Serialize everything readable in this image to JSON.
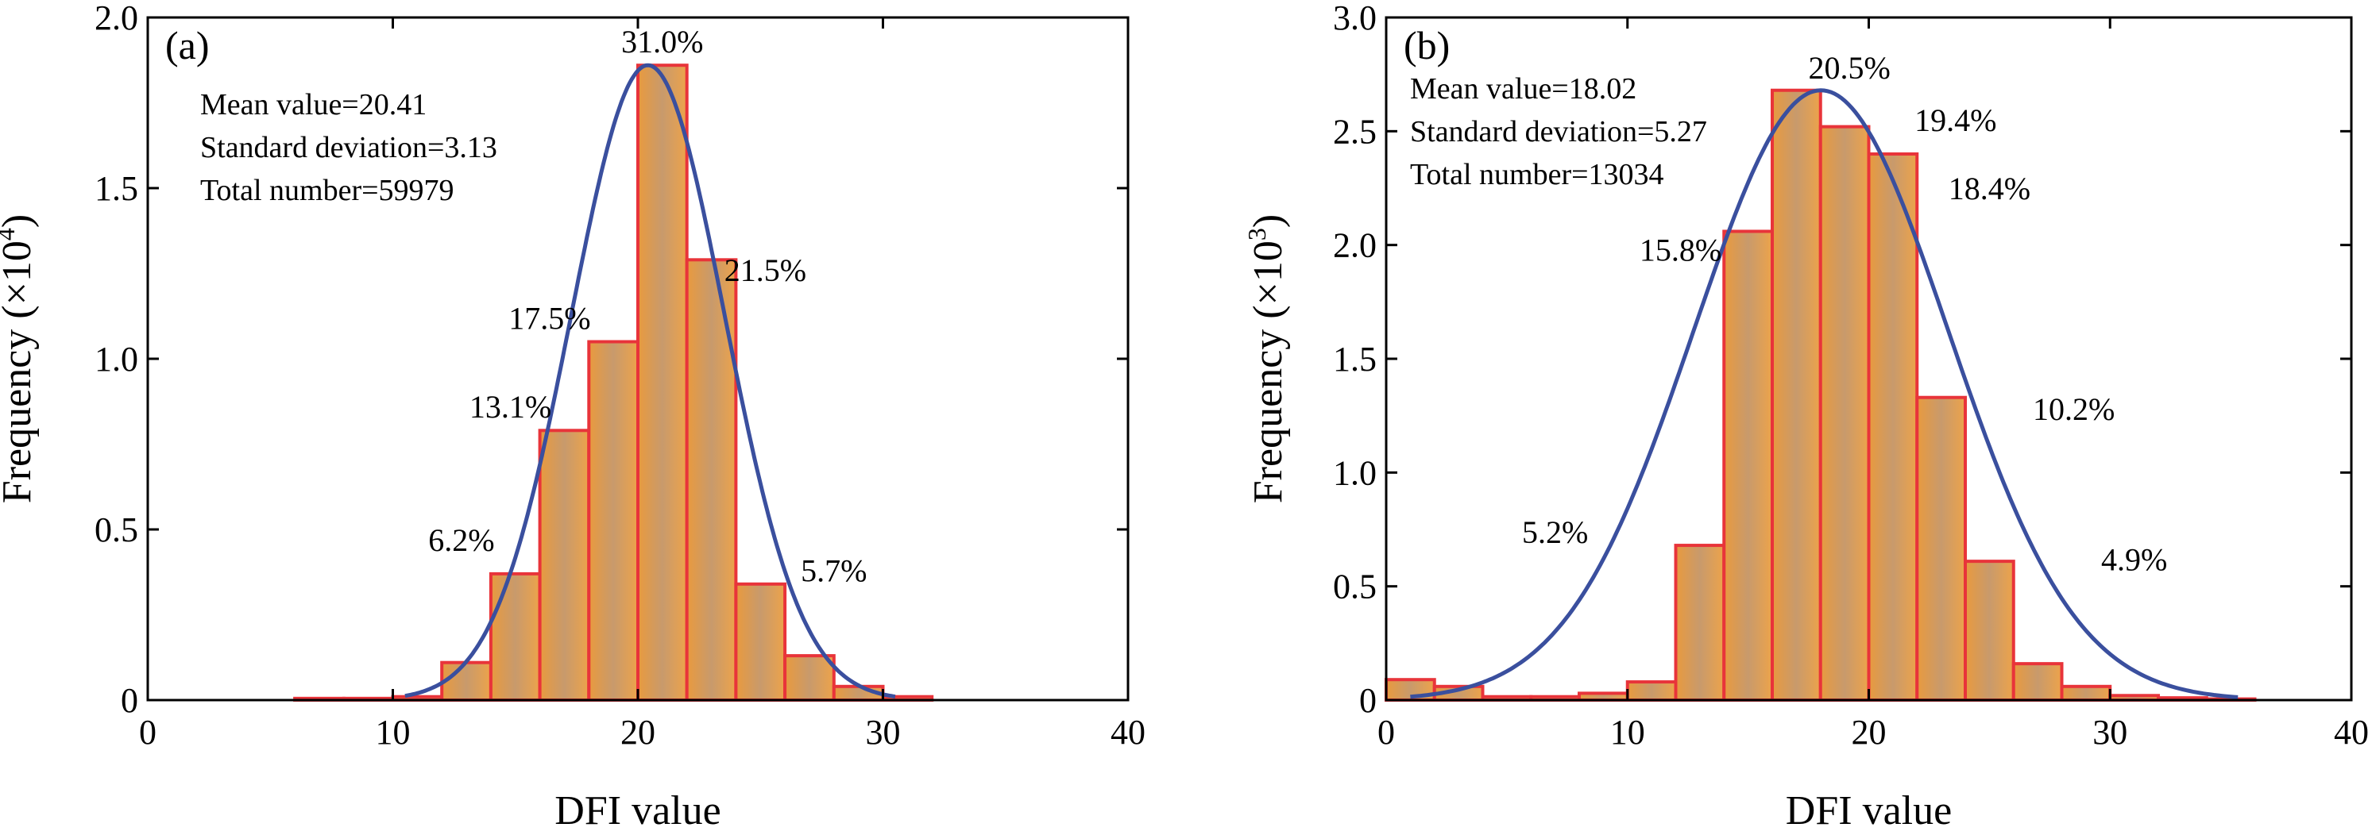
{
  "chart_data": [
    {
      "type": "bar",
      "panel_label": "(a)",
      "xlabel": "DFI value",
      "ylabel": "Frequency (×10⁴)",
      "ylabel_main": "Frequency (×10",
      "ylabel_exp": "4",
      "ylabel_close": ")",
      "xlim": [
        0,
        40
      ],
      "ylim": [
        0,
        2.0
      ],
      "xticks": [
        0,
        10,
        20,
        30,
        40
      ],
      "yticks": [
        0,
        0.5,
        1.0,
        1.5,
        2.0
      ],
      "ytick_labels": [
        "0",
        "0.5",
        "1.0",
        "1.5",
        "2.0"
      ],
      "bin_width": 2,
      "bins": [
        {
          "x0": 6,
          "value": 0.005
        },
        {
          "x0": 8,
          "value": 0.005
        },
        {
          "x0": 10,
          "value": 0.01
        },
        {
          "x0": 12,
          "value": 0.11
        },
        {
          "x0": 14,
          "value": 0.37
        },
        {
          "x0": 16,
          "value": 0.79
        },
        {
          "x0": 18,
          "value": 1.05
        },
        {
          "x0": 20,
          "value": 1.86
        },
        {
          "x0": 22,
          "value": 1.29
        },
        {
          "x0": 24,
          "value": 0.34
        },
        {
          "x0": 26,
          "value": 0.13
        },
        {
          "x0": 28,
          "value": 0.04
        },
        {
          "x0": 30,
          "value": 0.01
        }
      ],
      "curve": {
        "mean": 20.41,
        "sd": 3.13,
        "peak": 1.86,
        "x_from": 10.5,
        "x_to": 30.5
      },
      "stats": [
        "Mean value=20.41",
        "Standard deviation=3.13",
        "Total number=59979"
      ],
      "annotations": [
        {
          "text": "31.0%",
          "x": 21.0,
          "y": 1.93
        },
        {
          "text": "21.5%",
          "x": 25.2,
          "y": 1.26
        },
        {
          "text": "17.5%",
          "x": 16.4,
          "y": 1.12
        },
        {
          "text": "13.1%",
          "x": 14.8,
          "y": 0.86
        },
        {
          "text": "6.2%",
          "x": 12.8,
          "y": 0.47
        },
        {
          "text": "5.7%",
          "x": 28.0,
          "y": 0.38
        }
      ]
    },
    {
      "type": "bar",
      "panel_label": "(b)",
      "xlabel": "DFI value",
      "ylabel": "Frequency (×10³)",
      "ylabel_main": "Frequency (×10",
      "ylabel_exp": "3",
      "ylabel_close": ")",
      "xlim": [
        0,
        40
      ],
      "ylim": [
        0,
        3.0
      ],
      "xticks": [
        0,
        10,
        20,
        30,
        40
      ],
      "yticks": [
        0,
        0.5,
        1.0,
        1.5,
        2.0,
        2.5,
        3.0
      ],
      "ytick_labels": [
        "0",
        "0.5",
        "1.0",
        "1.5",
        "2.0",
        "2.5",
        "3.0"
      ],
      "bin_width": 2,
      "bins": [
        {
          "x0": 0,
          "value": 0.09
        },
        {
          "x0": 2,
          "value": 0.06
        },
        {
          "x0": 4,
          "value": 0.015
        },
        {
          "x0": 6,
          "value": 0.015
        },
        {
          "x0": 8,
          "value": 0.03
        },
        {
          "x0": 10,
          "value": 0.08
        },
        {
          "x0": 12,
          "value": 0.68
        },
        {
          "x0": 14,
          "value": 2.06
        },
        {
          "x0": 16,
          "value": 2.68
        },
        {
          "x0": 18,
          "value": 2.52
        },
        {
          "x0": 20,
          "value": 2.4
        },
        {
          "x0": 22,
          "value": 1.33
        },
        {
          "x0": 24,
          "value": 0.61
        },
        {
          "x0": 26,
          "value": 0.16
        },
        {
          "x0": 28,
          "value": 0.06
        },
        {
          "x0": 30,
          "value": 0.02
        },
        {
          "x0": 32,
          "value": 0.01
        },
        {
          "x0": 34,
          "value": 0.005
        }
      ],
      "curve": {
        "mean": 18.02,
        "sd": 5.27,
        "peak": 2.68,
        "x_from": 1,
        "x_to": 35.3
      },
      "stats": [
        "Mean value=18.02",
        "Standard deviation=5.27",
        "Total number=13034"
      ],
      "annotations": [
        {
          "text": "20.5%",
          "x": 19.2,
          "y": 2.78
        },
        {
          "text": "19.4%",
          "x": 23.6,
          "y": 2.55
        },
        {
          "text": "18.4%",
          "x": 25.0,
          "y": 2.25
        },
        {
          "text": "15.8%",
          "x": 12.2,
          "y": 1.98
        },
        {
          "text": "10.2%",
          "x": 28.5,
          "y": 1.28
        },
        {
          "text": "5.2%",
          "x": 7.0,
          "y": 0.74
        },
        {
          "text": "4.9%",
          "x": 31.0,
          "y": 0.62
        }
      ]
    }
  ]
}
